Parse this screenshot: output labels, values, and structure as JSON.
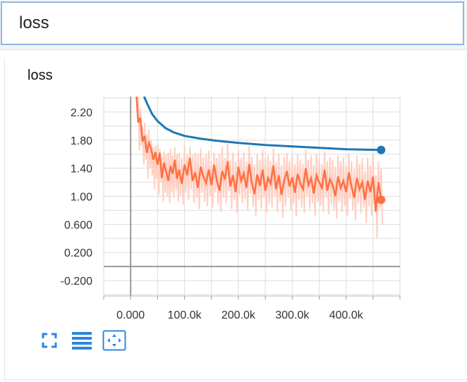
{
  "search": {
    "value": "loss"
  },
  "card": {
    "title": "loss"
  },
  "colors": {
    "smoothed_series": "#1f77b4",
    "raw_series": "#ff7043",
    "raw_series_light": "#ffcfc2",
    "toolbar_icon": "#2e86de"
  },
  "toolbar": {
    "icons": [
      "expand-icon",
      "lines-icon",
      "fit-domain-icon"
    ]
  },
  "chart_data": {
    "type": "line",
    "title": "",
    "xlabel": "",
    "ylabel": "",
    "xlim": [
      -50000,
      500000
    ],
    "ylim": [
      -0.42,
      2.42
    ],
    "grid": true,
    "x_ticks": [
      0,
      100000,
      200000,
      300000,
      400000
    ],
    "x_tick_labels": [
      "0.000",
      "100.0k",
      "200.0k",
      "300.0k",
      "400.0k"
    ],
    "y_ticks": [
      2.2,
      1.8,
      1.4,
      1.0,
      0.6,
      0.2,
      -0.2
    ],
    "y_tick_labels": [
      "2.20",
      "1.80",
      "1.40",
      "1.00",
      "0.600",
      "0.200",
      "-0.200"
    ],
    "series": [
      {
        "color": "#1f77b4",
        "x": [
          25000,
          30000,
          40000,
          50000,
          65000,
          80000,
          100000,
          130000,
          160000,
          200000,
          250000,
          300000,
          350000,
          400000,
          430000,
          465000
        ],
        "y": [
          2.42,
          2.33,
          2.17,
          2.07,
          1.97,
          1.91,
          1.86,
          1.82,
          1.79,
          1.76,
          1.73,
          1.71,
          1.69,
          1.67,
          1.665,
          1.66
        ],
        "end_marker": true
      },
      {
        "color": "#ff7043",
        "x": [
          11000,
          14000,
          18000,
          22000,
          26000,
          30000,
          34000,
          38000,
          42000,
          46000,
          50000,
          54000,
          58000,
          62000,
          66000,
          70000,
          74000,
          78000,
          82000,
          86000,
          90000,
          95000,
          100000,
          105000,
          110000,
          115000,
          120000,
          125000,
          130000,
          135000,
          140000,
          145000,
          150000,
          155000,
          160000,
          165000,
          170000,
          175000,
          180000,
          185000,
          190000,
          195000,
          200000,
          205000,
          210000,
          215000,
          220000,
          225000,
          230000,
          235000,
          240000,
          245000,
          250000,
          255000,
          260000,
          265000,
          270000,
          275000,
          280000,
          285000,
          290000,
          295000,
          300000,
          305000,
          310000,
          315000,
          320000,
          325000,
          330000,
          335000,
          340000,
          345000,
          350000,
          355000,
          360000,
          365000,
          370000,
          375000,
          380000,
          385000,
          390000,
          395000,
          400000,
          405000,
          410000,
          415000,
          420000,
          425000,
          430000,
          435000,
          440000,
          445000,
          450000,
          455000,
          460000,
          465000
        ],
        "y": [
          2.42,
          2.05,
          2.12,
          1.78,
          1.86,
          1.62,
          1.76,
          1.68,
          1.52,
          1.63,
          1.45,
          1.62,
          1.26,
          1.48,
          1.35,
          1.22,
          1.43,
          1.32,
          1.52,
          1.25,
          1.38,
          1.18,
          1.45,
          1.3,
          1.55,
          1.22,
          1.34,
          1.12,
          1.42,
          1.28,
          1.19,
          1.38,
          1.16,
          1.45,
          1.22,
          1.08,
          1.36,
          1.24,
          1.5,
          1.14,
          1.3,
          1.06,
          1.42,
          1.22,
          1.33,
          1.12,
          1.46,
          1.19,
          1.03,
          1.31,
          1.15,
          1.38,
          1.08,
          1.26,
          1.18,
          1.44,
          1.1,
          1.3,
          1.02,
          1.22,
          1.36,
          1.14,
          1.27,
          1.05,
          1.32,
          1.18,
          1.1,
          1.4,
          1.16,
          1.26,
          1.04,
          1.3,
          1.2,
          1.12,
          1.38,
          1.08,
          1.24,
          1.16,
          1.0,
          1.28,
          1.12,
          1.22,
          1.06,
          1.34,
          1.14,
          0.98,
          1.26,
          1.1,
          1.2,
          0.95,
          1.22,
          1.06,
          1.28,
          0.78,
          1.2,
          0.95
        ],
        "raw_high": [
          2.42,
          2.42,
          2.25,
          2.0,
          2.05,
          1.88,
          1.95,
          1.8,
          1.7,
          1.72,
          1.75,
          1.68,
          1.56,
          1.64,
          1.6,
          1.62,
          1.68,
          1.58,
          1.7,
          1.6,
          1.62,
          1.55,
          1.72,
          1.6,
          1.7,
          1.58,
          1.62,
          1.6,
          1.68,
          1.55,
          1.6,
          1.65,
          1.5,
          1.62,
          1.55,
          1.6,
          1.7,
          1.55,
          1.75,
          1.52,
          1.62,
          1.5,
          1.66,
          1.55,
          1.62,
          1.5,
          1.72,
          1.56,
          1.45,
          1.6,
          1.52,
          1.66,
          1.55,
          1.58,
          1.5,
          1.68,
          1.48,
          1.6,
          1.44,
          1.56,
          1.62,
          1.5,
          1.58,
          1.46,
          1.6,
          1.52,
          1.46,
          1.66,
          1.52,
          1.58,
          1.44,
          1.6,
          1.54,
          1.46,
          1.64,
          1.5,
          1.56,
          1.52,
          1.42,
          1.58,
          1.5,
          1.55,
          1.44,
          1.62,
          1.5,
          1.38,
          1.58,
          1.46,
          1.54,
          1.36,
          1.55,
          1.44,
          1.6,
          1.3,
          1.5,
          1.4
        ],
        "raw_low": [
          2.2,
          1.65,
          1.72,
          1.45,
          1.52,
          1.25,
          1.4,
          1.3,
          1.1,
          1.25,
          1.02,
          1.2,
          0.92,
          1.05,
          1.0,
          0.9,
          1.05,
          0.98,
          1.1,
          0.92,
          1.0,
          0.88,
          1.05,
          0.95,
          1.1,
          0.9,
          0.98,
          0.82,
          1.05,
          0.92,
          0.86,
          1.0,
          0.84,
          1.05,
          0.88,
          0.78,
          0.98,
          0.9,
          1.08,
          0.82,
          0.95,
          0.76,
          1.02,
          0.9,
          0.96,
          0.8,
          1.04,
          0.85,
          0.72,
          0.95,
          0.82,
          0.98,
          0.76,
          0.9,
          0.84,
          1.0,
          0.78,
          0.92,
          0.7,
          0.86,
          0.98,
          0.8,
          0.9,
          0.72,
          0.95,
          0.84,
          0.76,
          1.0,
          0.82,
          0.9,
          0.72,
          0.92,
          0.86,
          0.78,
          0.98,
          0.74,
          0.88,
          0.8,
          0.68,
          0.92,
          0.78,
          0.86,
          0.72,
          0.96,
          0.8,
          0.66,
          0.9,
          0.76,
          0.84,
          0.62,
          0.86,
          0.72,
          0.9,
          0.4,
          0.82,
          0.6
        ],
        "end_marker": true
      }
    ]
  }
}
